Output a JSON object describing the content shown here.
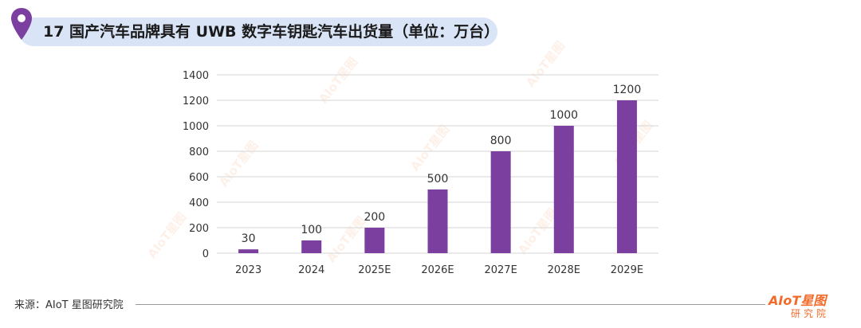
{
  "header": {
    "title": "17 国产汽车品牌具有 UWB 数字车钥匙汽车出货量（单位：万台）"
  },
  "chart_data": {
    "type": "bar",
    "categories": [
      "2023",
      "2024",
      "2025E",
      "2026E",
      "2027E",
      "2028E",
      "2029E"
    ],
    "values": [
      30,
      100,
      200,
      500,
      800,
      1000,
      1200
    ],
    "data_labels": [
      "30",
      "100",
      "200",
      "500",
      "800",
      "1000",
      "1200"
    ],
    "yticks": [
      "0",
      "200",
      "400",
      "600",
      "800",
      "1000",
      "1200",
      "1400"
    ],
    "ylim": [
      0,
      1400
    ],
    "grid": true,
    "legend": "none",
    "bar_color": "#7b3fa0"
  },
  "footer": {
    "source": "来源：AIoT 星图研究院",
    "logo_main": "AIoT星图",
    "logo_sub": "研究院"
  },
  "watermark": {
    "line1": "AIoT星图",
    "line2": "研究院"
  },
  "colors": {
    "accent": "#7b3fa0",
    "title_bg": "#d9e4f6",
    "pin": "#7b3fa0",
    "logo": "#f26b2a"
  }
}
